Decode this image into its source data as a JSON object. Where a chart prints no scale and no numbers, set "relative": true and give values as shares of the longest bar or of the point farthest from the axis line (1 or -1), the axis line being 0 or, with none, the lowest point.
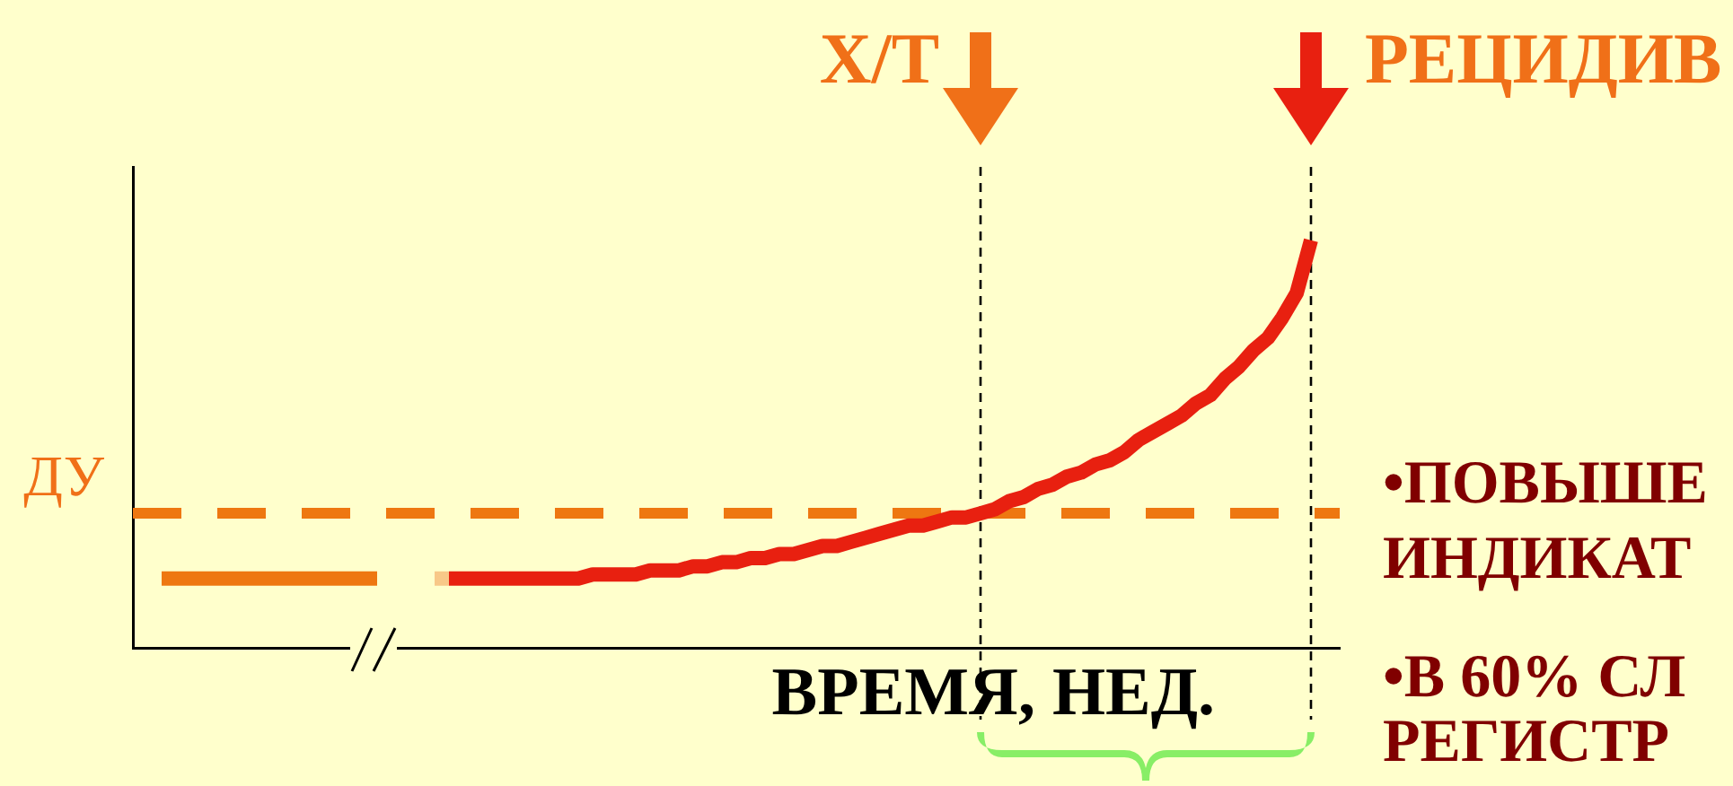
{
  "chart_data": {
    "type": "line",
    "xlabel": "ВРЕМЯ, НЕД.",
    "relative": true,
    "categories": [
      null,
      null,
      null,
      null,
      null,
      null,
      null,
      null,
      null,
      null,
      null,
      null,
      null,
      null,
      null,
      null,
      null,
      null,
      null,
      null,
      null,
      null,
      null,
      null,
      null,
      null,
      null,
      null,
      null,
      null,
      null,
      null,
      null,
      null,
      null,
      null,
      null,
      null,
      null,
      null,
      null,
      null,
      null,
      null,
      null,
      null,
      null,
      null,
      null,
      null,
      null,
      null,
      null,
      null,
      null,
      null,
      null,
      null,
      null,
      null,
      null,
      null,
      null,
      null,
      null,
      null,
      null,
      null,
      null,
      null,
      null,
      null,
      null,
      null,
      null,
      null,
      null,
      null,
      null,
      null,
      null,
      null,
      null,
      null,
      null
    ],
    "series": [
      {
        "color": "#ee7711",
        "values": [
          null,
          null,
          0.17,
          0.17,
          0.17,
          0.17,
          0.17,
          0.17,
          0.17,
          0.17,
          0.17,
          0.17,
          0.17,
          0.17,
          0.17,
          0.17,
          0.17,
          0.17,
          null,
          null,
          null,
          null,
          null,
          null,
          null,
          null,
          null,
          null,
          null,
          null,
          null,
          null,
          null,
          null,
          null,
          null,
          null,
          null,
          null,
          null,
          null,
          null,
          null,
          null,
          null,
          null,
          null,
          null,
          null,
          null,
          null,
          null,
          null,
          null,
          null,
          null,
          null,
          null,
          null,
          null,
          null,
          null,
          null,
          null,
          null,
          null,
          null,
          null,
          null,
          null,
          null,
          null,
          null,
          null,
          null,
          null,
          null,
          null,
          null,
          null,
          null,
          null,
          null,
          null,
          null
        ]
      },
      {
        "color": "#f8c888",
        "values": [
          null,
          null,
          null,
          null,
          null,
          null,
          null,
          null,
          null,
          null,
          null,
          null,
          null,
          null,
          null,
          null,
          null,
          null,
          null,
          null,
          null,
          0.17,
          0.17,
          null,
          null,
          null,
          null,
          null,
          null,
          null,
          null,
          null,
          null,
          null,
          null,
          null,
          null,
          null,
          null,
          null,
          null,
          null,
          null,
          null,
          null,
          null,
          null,
          null,
          null,
          null,
          null,
          null,
          null,
          null,
          null,
          null,
          null,
          null,
          null,
          null,
          null,
          null,
          null,
          null,
          null,
          null,
          null,
          null,
          null,
          null,
          null,
          null,
          null,
          null,
          null,
          null,
          null,
          null,
          null,
          null,
          null,
          null,
          null,
          null,
          null
        ]
      },
      {
        "color": "#e82010",
        "values": [
          null,
          null,
          null,
          null,
          null,
          null,
          null,
          null,
          null,
          null,
          null,
          null,
          null,
          null,
          null,
          null,
          null,
          null,
          null,
          null,
          null,
          null,
          0.17,
          0.17,
          0.17,
          0.17,
          0.17,
          0.17,
          0.17,
          0.17,
          0.17,
          0.17,
          0.18,
          0.18,
          0.18,
          0.18,
          0.19,
          0.19,
          0.19,
          0.2,
          0.2,
          0.21,
          0.21,
          0.22,
          0.22,
          0.23,
          0.23,
          0.24,
          0.25,
          0.25,
          0.26,
          0.27,
          0.28,
          0.29,
          0.3,
          0.3,
          0.31,
          0.32,
          0.32,
          0.33,
          0.34,
          0.36,
          0.37,
          0.39,
          0.4,
          0.42,
          0.43,
          0.45,
          0.46,
          0.48,
          0.51,
          0.53,
          0.55,
          0.57,
          0.6,
          0.62,
          0.66,
          0.69,
          0.73,
          0.76,
          0.81,
          0.87,
          1,
          null,
          null
        ]
      }
    ],
    "ref_lines": [
      {
        "axis": "y",
        "value": 0.33,
        "label": "ДУ",
        "color": "#ee7711",
        "line_style": "dashed"
      }
    ],
    "annotations": [
      "Х/Т",
      "РЕЦИДИВ",
      "•ПОВЫШЕ",
      "ИНДИКАТ",
      "•В 60% СЛ",
      "РЕГИСТР"
    ],
    "legend": false,
    "grid": false,
    "marker": "none"
  }
}
